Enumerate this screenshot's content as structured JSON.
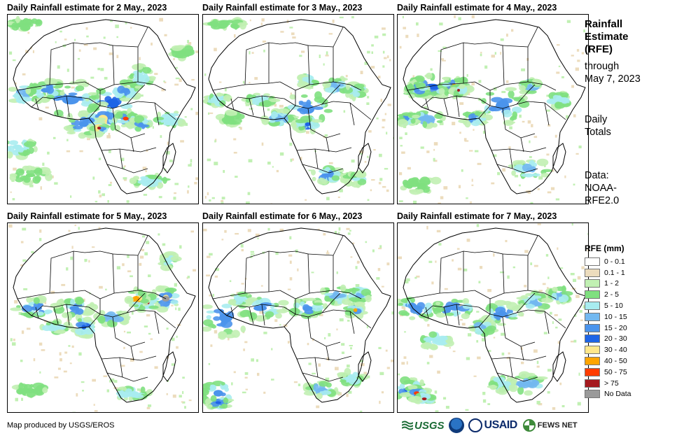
{
  "panels": [
    {
      "title": "Daily Rainfall estimate for 2 May., 2023",
      "date": "2 May., 2023",
      "rain": [
        [
          0.33,
          0.45,
          0.18,
          0.1,
          6
        ],
        [
          0.55,
          0.47,
          0.14,
          0.1,
          7
        ],
        [
          0.5,
          0.55,
          0.1,
          0.08,
          8
        ],
        [
          0.4,
          0.58,
          0.1,
          0.06,
          6
        ],
        [
          0.1,
          0.42,
          0.1,
          0.06,
          5
        ],
        [
          0.2,
          0.4,
          0.1,
          0.05,
          6
        ],
        [
          0.62,
          0.4,
          0.08,
          0.05,
          6
        ],
        [
          0.7,
          0.33,
          0.06,
          0.06,
          4
        ],
        [
          0.62,
          0.55,
          0.06,
          0.04,
          10
        ],
        [
          0.48,
          0.6,
          0.04,
          0.03,
          11
        ],
        [
          0.7,
          0.58,
          0.05,
          0.04,
          6
        ],
        [
          0.85,
          0.55,
          0.08,
          0.04,
          4
        ],
        [
          0.05,
          0.7,
          0.1,
          0.05,
          4
        ],
        [
          0.12,
          0.85,
          0.1,
          0.04,
          3
        ],
        [
          0.75,
          0.88,
          0.1,
          0.03,
          4
        ],
        [
          0.1,
          0.05,
          0.1,
          0.03,
          3
        ],
        [
          0.92,
          0.2,
          0.06,
          0.03,
          3
        ]
      ]
    },
    {
      "title": "Daily Rainfall estimate for 3 May., 2023",
      "date": "3 May., 2023",
      "rain": [
        [
          0.55,
          0.5,
          0.14,
          0.1,
          6
        ],
        [
          0.7,
          0.38,
          0.06,
          0.05,
          5
        ],
        [
          0.8,
          0.4,
          0.05,
          0.04,
          4
        ],
        [
          0.4,
          0.55,
          0.08,
          0.04,
          5
        ],
        [
          0.3,
          0.45,
          0.08,
          0.03,
          4
        ],
        [
          0.08,
          0.45,
          0.06,
          0.03,
          4
        ],
        [
          0.55,
          0.58,
          0.06,
          0.04,
          7
        ],
        [
          0.65,
          0.85,
          0.08,
          0.04,
          6
        ],
        [
          0.8,
          0.87,
          0.06,
          0.03,
          4
        ],
        [
          0.15,
          0.55,
          0.06,
          0.03,
          3
        ],
        [
          0.12,
          0.05,
          0.1,
          0.02,
          3
        ],
        [
          0.55,
          0.35,
          0.04,
          0.03,
          4
        ]
      ]
    },
    {
      "title": "Daily Rainfall estimate for 4 May., 2023",
      "date": "4 May., 2023",
      "rain": [
        [
          0.18,
          0.38,
          0.14,
          0.06,
          7
        ],
        [
          0.3,
          0.38,
          0.08,
          0.05,
          9
        ],
        [
          0.1,
          0.4,
          0.06,
          0.04,
          6
        ],
        [
          0.15,
          0.55,
          0.1,
          0.04,
          5
        ],
        [
          0.05,
          0.55,
          0.05,
          0.03,
          6
        ],
        [
          0.55,
          0.48,
          0.14,
          0.1,
          6
        ],
        [
          0.7,
          0.38,
          0.05,
          0.04,
          5
        ],
        [
          0.4,
          0.55,
          0.06,
          0.04,
          6
        ],
        [
          0.7,
          0.82,
          0.1,
          0.05,
          5
        ],
        [
          0.12,
          0.9,
          0.1,
          0.04,
          3
        ],
        [
          0.85,
          0.45,
          0.06,
          0.04,
          4
        ],
        [
          0.32,
          0.4,
          0.03,
          0.03,
          11
        ]
      ]
    },
    {
      "title": "Daily Rainfall estimate for 5 May., 2023",
      "date": "5 May., 2023",
      "rain": [
        [
          0.83,
          0.4,
          0.08,
          0.06,
          12
        ],
        [
          0.73,
          0.42,
          0.06,
          0.05,
          11
        ],
        [
          0.68,
          0.4,
          0.05,
          0.05,
          9
        ],
        [
          0.35,
          0.45,
          0.1,
          0.05,
          6
        ],
        [
          0.15,
          0.45,
          0.12,
          0.05,
          6
        ],
        [
          0.4,
          0.55,
          0.05,
          0.05,
          7
        ],
        [
          0.55,
          0.5,
          0.08,
          0.04,
          5
        ],
        [
          0.85,
          0.2,
          0.04,
          0.04,
          4
        ],
        [
          0.65,
          0.9,
          0.1,
          0.03,
          4
        ],
        [
          0.12,
          0.88,
          0.08,
          0.03,
          3
        ],
        [
          0.25,
          0.55,
          0.08,
          0.03,
          4
        ]
      ]
    },
    {
      "title": "Daily Rainfall estimate for 6 May., 2023",
      "date": "6 May., 2023",
      "rain": [
        [
          0.12,
          0.5,
          0.14,
          0.1,
          6
        ],
        [
          0.08,
          0.9,
          0.1,
          0.07,
          6
        ],
        [
          0.08,
          0.95,
          0.06,
          0.03,
          7
        ],
        [
          0.3,
          0.45,
          0.14,
          0.06,
          6
        ],
        [
          0.55,
          0.45,
          0.1,
          0.05,
          6
        ],
        [
          0.7,
          0.38,
          0.08,
          0.05,
          5
        ],
        [
          0.82,
          0.38,
          0.06,
          0.04,
          5
        ],
        [
          0.8,
          0.46,
          0.04,
          0.04,
          9
        ],
        [
          0.62,
          0.88,
          0.08,
          0.04,
          5
        ],
        [
          0.78,
          0.82,
          0.06,
          0.04,
          4
        ],
        [
          0.2,
          0.4,
          0.06,
          0.03,
          4
        ]
      ]
    },
    {
      "title": "Daily Rainfall estimate for 7 May., 2023",
      "date": "7 May., 2023",
      "rain": [
        [
          0.06,
          0.88,
          0.1,
          0.06,
          7
        ],
        [
          0.1,
          0.9,
          0.06,
          0.04,
          10
        ],
        [
          0.14,
          0.93,
          0.05,
          0.03,
          11
        ],
        [
          0.1,
          0.45,
          0.12,
          0.06,
          6
        ],
        [
          0.3,
          0.45,
          0.12,
          0.05,
          6
        ],
        [
          0.55,
          0.48,
          0.1,
          0.06,
          6
        ],
        [
          0.72,
          0.42,
          0.08,
          0.05,
          5
        ],
        [
          0.85,
          0.38,
          0.06,
          0.04,
          5
        ],
        [
          0.68,
          0.85,
          0.1,
          0.05,
          5
        ],
        [
          0.55,
          0.85,
          0.06,
          0.04,
          4
        ],
        [
          0.2,
          0.62,
          0.08,
          0.04,
          4
        ],
        [
          0.45,
          0.55,
          0.06,
          0.04,
          5
        ]
      ]
    }
  ],
  "sidebar": {
    "title_lines": [
      "Rainfall",
      "Estimate",
      "(RFE)"
    ],
    "through_lines": [
      "through",
      "May 7, 2023"
    ],
    "totals_lines": [
      "Daily",
      "Totals"
    ],
    "data_lines": [
      "Data:",
      "NOAA-",
      "RFE2.0"
    ]
  },
  "legend": {
    "title": "RFE (mm)",
    "items": [
      {
        "label": "0 - 0.1",
        "color": "#ffffff"
      },
      {
        "label": "0.1 - 1",
        "color": "#ecdcbd"
      },
      {
        "label": "1 - 2",
        "color": "#c1f0b3"
      },
      {
        "label": "2 - 5",
        "color": "#7fe07f"
      },
      {
        "label": "5 - 10",
        "color": "#a8ecf0"
      },
      {
        "label": "10 - 15",
        "color": "#72b8f0"
      },
      {
        "label": "15 - 20",
        "color": "#4b94ec"
      },
      {
        "label": "20 - 30",
        "color": "#1e64e6"
      },
      {
        "label": "30 - 40",
        "color": "#ffe78a"
      },
      {
        "label": "40 - 50",
        "color": "#ffa500"
      },
      {
        "label": "50 - 75",
        "color": "#ff3c00"
      },
      {
        "label": "> 75",
        "color": "#a5191e"
      },
      {
        "label": "No Data",
        "color": "#9a9a9a"
      }
    ]
  },
  "credit": "Map produced by USGS/EROS",
  "logos": {
    "usgs": "USGS",
    "usaid": "USAID",
    "fews": "FEWS NET"
  }
}
